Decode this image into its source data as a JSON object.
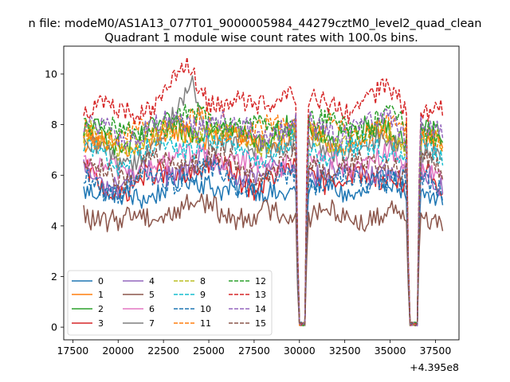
{
  "figure": {
    "suptitle": "n file: modeM0/AS1A13_077T01_9000005984_44279cztM0_level2_quad_clean",
    "offset_label": "+4.395e8"
  },
  "chart_data": {
    "type": "line",
    "title": "Quadrant 1 module wise count rates with 100.0s bins.",
    "xlabel": "",
    "ylabel": "",
    "xlim": [
      17000,
      38800
    ],
    "ylim": [
      -0.5,
      11.1
    ],
    "x_offset": 439500000,
    "grid": false,
    "legend_placement": "lower-left",
    "legend_columns": 4,
    "x_ticks": [
      17500,
      20000,
      22500,
      25000,
      27500,
      30000,
      32500,
      35000,
      37500
    ],
    "y_ticks": [
      0,
      2,
      4,
      6,
      8,
      10
    ],
    "x_tick_labels": [
      "17500",
      "20000",
      "22500",
      "25000",
      "27500",
      "30000",
      "32500",
      "35000",
      "37500"
    ],
    "y_tick_labels": [
      "0",
      "2",
      "4",
      "6",
      "8",
      "10"
    ],
    "x_range": [
      18100,
      37900
    ],
    "bin_step": 100,
    "gaps": [
      {
        "start": 29950,
        "end": 30300,
        "min": 0.05
      },
      {
        "start": 36050,
        "end": 36500,
        "min": 0.03
      }
    ],
    "series": [
      {
        "name": "0",
        "color": "#1f77b4",
        "dashed": false,
        "levels": [
          [
            18100,
            5.6
          ],
          [
            20000,
            5.0
          ],
          [
            22500,
            5.5
          ],
          [
            25000,
            5.8
          ],
          [
            27500,
            5.2
          ],
          [
            29900,
            5.6
          ],
          [
            30400,
            5.5
          ],
          [
            33000,
            5.4
          ],
          [
            35000,
            5.6
          ],
          [
            36000,
            5.3
          ],
          [
            36600,
            5.7
          ],
          [
            37900,
            4.9
          ]
        ]
      },
      {
        "name": "1",
        "color": "#ff7f0e",
        "dashed": false,
        "levels": [
          [
            18100,
            7.4
          ],
          [
            20000,
            7.0
          ],
          [
            22500,
            7.5
          ],
          [
            25000,
            7.7
          ],
          [
            27500,
            7.2
          ],
          [
            29900,
            7.6
          ],
          [
            30400,
            7.5
          ],
          [
            33000,
            7.3
          ],
          [
            35000,
            7.6
          ],
          [
            36000,
            7.2
          ],
          [
            36600,
            7.6
          ],
          [
            37900,
            7.0
          ]
        ]
      },
      {
        "name": "2",
        "color": "#2ca02c",
        "dashed": false,
        "levels": [
          [
            18100,
            7.8
          ],
          [
            20000,
            7.3
          ],
          [
            22500,
            7.8
          ],
          [
            25000,
            8.0
          ],
          [
            27500,
            7.5
          ],
          [
            29900,
            7.9
          ],
          [
            30400,
            7.8
          ],
          [
            33000,
            7.6
          ],
          [
            35000,
            7.9
          ],
          [
            36000,
            7.5
          ],
          [
            36600,
            7.8
          ],
          [
            37900,
            7.3
          ]
        ]
      },
      {
        "name": "3",
        "color": "#d62728",
        "dashed": false,
        "levels": [
          [
            18100,
            6.0
          ],
          [
            20000,
            5.4
          ],
          [
            22500,
            6.0
          ],
          [
            25000,
            6.3
          ],
          [
            27500,
            5.7
          ],
          [
            29900,
            6.1
          ],
          [
            30400,
            6.0
          ],
          [
            33000,
            5.8
          ],
          [
            35000,
            6.1
          ],
          [
            36000,
            5.7
          ],
          [
            36600,
            6.1
          ],
          [
            37900,
            5.5
          ]
        ]
      },
      {
        "name": "4",
        "color": "#9467bd",
        "dashed": false,
        "levels": [
          [
            18100,
            6.2
          ],
          [
            20000,
            5.6
          ],
          [
            22500,
            6.2
          ],
          [
            25000,
            6.4
          ],
          [
            27500,
            5.9
          ],
          [
            29900,
            6.3
          ],
          [
            30400,
            6.2
          ],
          [
            33000,
            6.0
          ],
          [
            35000,
            6.3
          ],
          [
            36000,
            5.9
          ],
          [
            36600,
            6.2
          ],
          [
            37900,
            5.7
          ]
        ]
      },
      {
        "name": "5",
        "color": "#8c564b",
        "dashed": false,
        "levels": [
          [
            18100,
            4.6
          ],
          [
            20000,
            4.1
          ],
          [
            22500,
            4.6
          ],
          [
            25000,
            4.8
          ],
          [
            27500,
            4.3
          ],
          [
            29900,
            4.6
          ],
          [
            30400,
            4.5
          ],
          [
            33000,
            4.3
          ],
          [
            35000,
            4.6
          ],
          [
            36000,
            4.3
          ],
          [
            36600,
            4.6
          ],
          [
            37900,
            4.2
          ]
        ]
      },
      {
        "name": "6",
        "color": "#e377c2",
        "dashed": false,
        "levels": [
          [
            18100,
            6.6
          ],
          [
            20000,
            6.0
          ],
          [
            22500,
            6.6
          ],
          [
            25000,
            6.8
          ],
          [
            27500,
            6.3
          ],
          [
            29900,
            6.7
          ],
          [
            30400,
            6.6
          ],
          [
            33000,
            6.4
          ],
          [
            35000,
            6.7
          ],
          [
            36000,
            6.3
          ],
          [
            36600,
            6.6
          ],
          [
            37900,
            6.0
          ]
        ]
      },
      {
        "name": "7",
        "color": "#7f7f7f",
        "dashed": false,
        "levels": [
          [
            18100,
            7.2
          ],
          [
            20000,
            6.5
          ],
          [
            22500,
            7.4
          ],
          [
            24100,
            9.6
          ],
          [
            25000,
            7.5
          ],
          [
            27500,
            7.0
          ],
          [
            29900,
            7.3
          ],
          [
            30400,
            7.2
          ],
          [
            33000,
            7.0
          ],
          [
            35000,
            7.3
          ],
          [
            36000,
            6.9
          ],
          [
            36600,
            7.2
          ],
          [
            37900,
            6.6
          ]
        ]
      },
      {
        "name": "8",
        "color": "#bcbd22",
        "dashed": true,
        "levels": [
          [
            18100,
            7.6
          ],
          [
            20000,
            7.1
          ],
          [
            22500,
            7.6
          ],
          [
            25000,
            7.8
          ],
          [
            27500,
            7.3
          ],
          [
            29900,
            7.7
          ],
          [
            30400,
            7.6
          ],
          [
            33000,
            7.4
          ],
          [
            35000,
            7.7
          ],
          [
            36000,
            7.3
          ],
          [
            36600,
            7.6
          ],
          [
            37900,
            7.1
          ]
        ]
      },
      {
        "name": "9",
        "color": "#17becf",
        "dashed": true,
        "levels": [
          [
            18100,
            7.1
          ],
          [
            20000,
            6.6
          ],
          [
            22500,
            7.1
          ],
          [
            25000,
            7.3
          ],
          [
            27500,
            6.8
          ],
          [
            29900,
            7.2
          ],
          [
            30400,
            7.1
          ],
          [
            33000,
            6.9
          ],
          [
            35000,
            7.2
          ],
          [
            36000,
            6.8
          ],
          [
            36600,
            7.1
          ],
          [
            37900,
            6.6
          ]
        ]
      },
      {
        "name": "10",
        "color": "#1f77b4",
        "dashed": true,
        "levels": [
          [
            18100,
            5.9
          ],
          [
            20000,
            5.4
          ],
          [
            22500,
            5.9
          ],
          [
            25000,
            6.1
          ],
          [
            27500,
            5.6
          ],
          [
            29900,
            6.0
          ],
          [
            30400,
            5.9
          ],
          [
            33000,
            5.7
          ],
          [
            35000,
            6.0
          ],
          [
            36000,
            5.6
          ],
          [
            36600,
            5.9
          ],
          [
            37900,
            5.4
          ]
        ]
      },
      {
        "name": "11",
        "color": "#ff7f0e",
        "dashed": true,
        "levels": [
          [
            18100,
            7.9
          ],
          [
            20000,
            7.4
          ],
          [
            22500,
            7.9
          ],
          [
            25000,
            8.1
          ],
          [
            27500,
            7.6
          ],
          [
            29900,
            8.0
          ],
          [
            30400,
            7.9
          ],
          [
            33000,
            7.7
          ],
          [
            35000,
            8.0
          ],
          [
            36000,
            7.6
          ],
          [
            36600,
            7.9
          ],
          [
            37900,
            7.4
          ]
        ]
      },
      {
        "name": "12",
        "color": "#2ca02c",
        "dashed": true,
        "levels": [
          [
            18100,
            8.1
          ],
          [
            20000,
            7.6
          ],
          [
            22500,
            8.1
          ],
          [
            25000,
            8.3
          ],
          [
            27500,
            7.8
          ],
          [
            29900,
            8.2
          ],
          [
            30400,
            8.1
          ],
          [
            33000,
            7.9
          ],
          [
            35000,
            8.2
          ],
          [
            36000,
            7.8
          ],
          [
            36600,
            8.1
          ],
          [
            37900,
            7.6
          ]
        ]
      },
      {
        "name": "13",
        "color": "#d62728",
        "dashed": true,
        "levels": [
          [
            18100,
            8.8
          ],
          [
            20000,
            8.4
          ],
          [
            22500,
            9.0
          ],
          [
            24000,
            10.2
          ],
          [
            25000,
            9.0
          ],
          [
            27500,
            8.6
          ],
          [
            29200,
            9.5
          ],
          [
            29900,
            8.9
          ],
          [
            30400,
            8.8
          ],
          [
            33000,
            8.6
          ],
          [
            35000,
            9.3
          ],
          [
            36000,
            8.6
          ],
          [
            36600,
            8.9
          ],
          [
            37900,
            8.4
          ]
        ]
      },
      {
        "name": "14",
        "color": "#9467bd",
        "dashed": true,
        "levels": [
          [
            18100,
            7.9
          ],
          [
            20000,
            7.5
          ],
          [
            22500,
            8.0
          ],
          [
            25000,
            8.1
          ],
          [
            27500,
            7.7
          ],
          [
            29900,
            8.0
          ],
          [
            30400,
            7.9
          ],
          [
            33000,
            7.8
          ],
          [
            35000,
            8.3
          ],
          [
            36000,
            7.7
          ],
          [
            36600,
            8.0
          ],
          [
            37900,
            7.5
          ]
        ]
      },
      {
        "name": "15",
        "color": "#8c564b",
        "dashed": true,
        "levels": [
          [
            18100,
            6.5
          ],
          [
            20000,
            6.0
          ],
          [
            22500,
            6.5
          ],
          [
            25000,
            6.7
          ],
          [
            27500,
            6.2
          ],
          [
            29900,
            6.6
          ],
          [
            30400,
            6.5
          ],
          [
            33000,
            6.3
          ],
          [
            35000,
            6.6
          ],
          [
            36000,
            6.2
          ],
          [
            36600,
            6.5
          ],
          [
            37900,
            6.0
          ]
        ]
      }
    ]
  }
}
